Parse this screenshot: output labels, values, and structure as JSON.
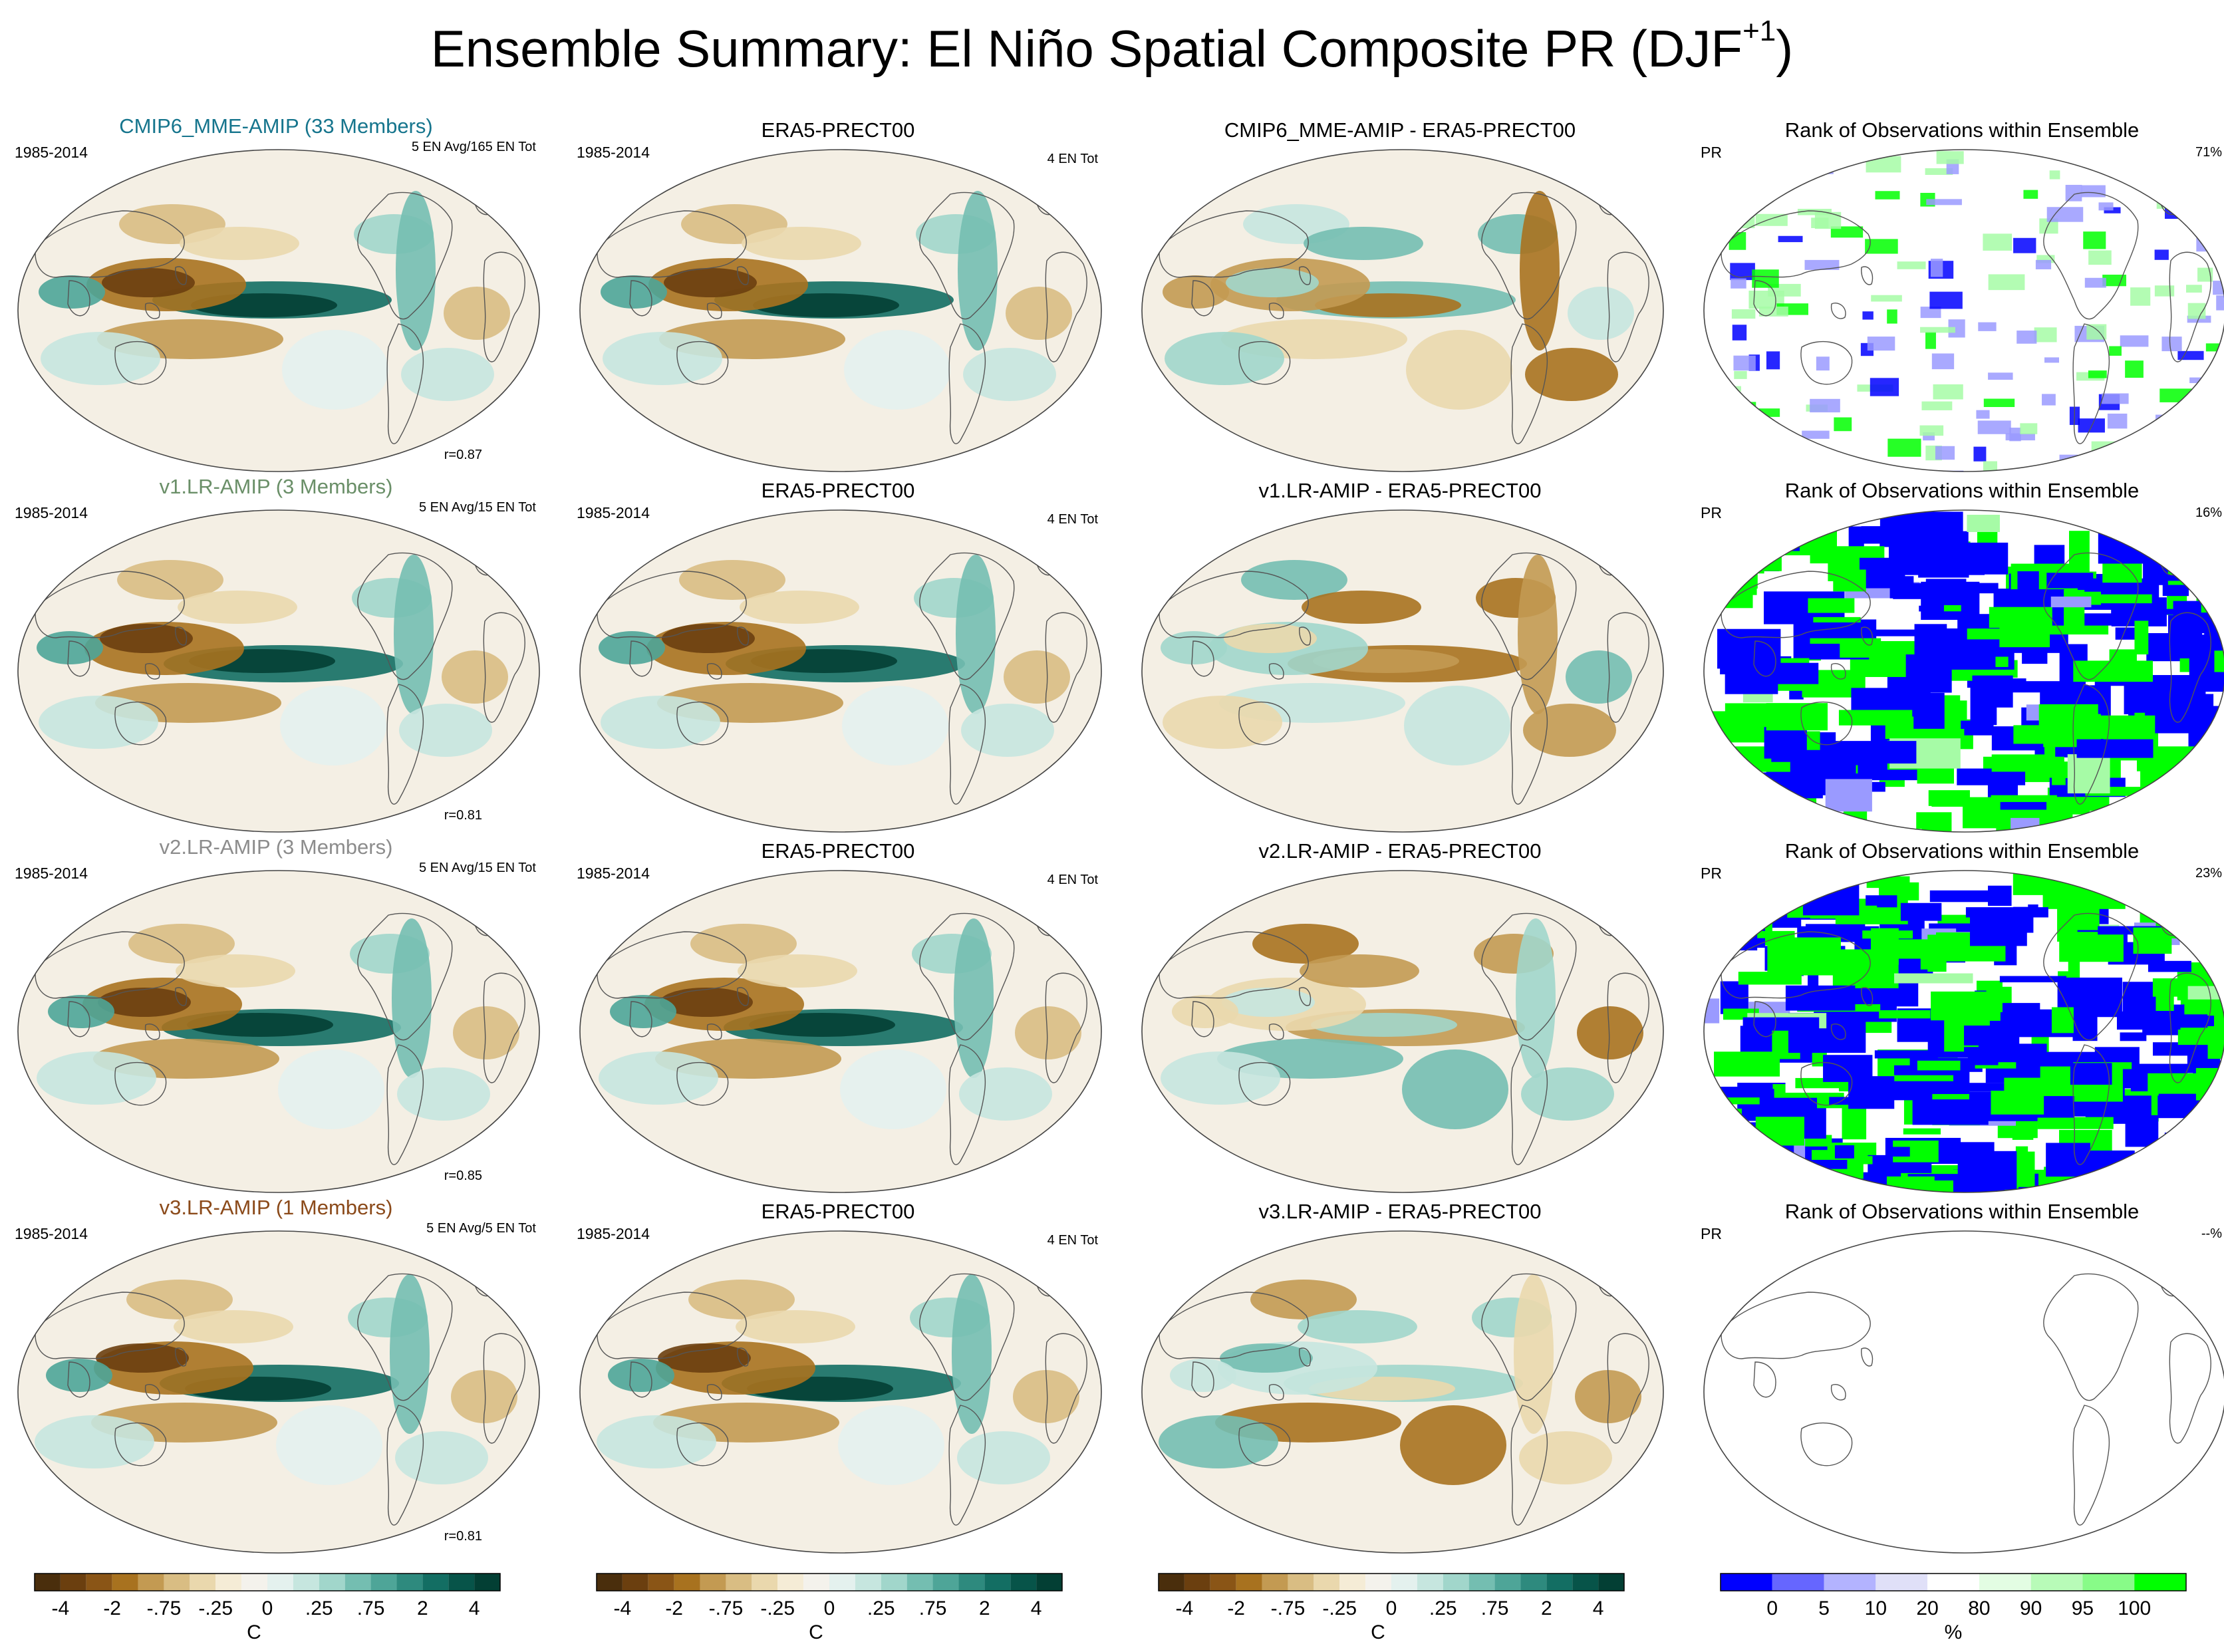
{
  "title": "Ensemble Summary: El Niño Spatial Composite PR (DJF",
  "title_sup": "+1",
  "title_close": ")",
  "rows": [
    {
      "model": {
        "title": "CMIP6_MME-AMIP (33 Members)",
        "title_color": "#16758d",
        "period": "1985-2014",
        "note": "5 EN Avg/165 EN Tot",
        "corr": "r=0.87"
      },
      "obs": {
        "title": "ERA5-PRECT00",
        "period": "1985-2014",
        "note": "4 EN Tot"
      },
      "diff": {
        "title": "CMIP6_MME-AMIP - ERA5-PRECT00"
      },
      "rank": {
        "title": "Rank of Observations within Ensemble",
        "var": "PR",
        "pct": "71%"
      }
    },
    {
      "model": {
        "title": "v1.LR-AMIP (3 Members)",
        "title_color": "#6a8f68",
        "period": "1985-2014",
        "note": "5 EN Avg/15 EN Tot",
        "corr": "r=0.81"
      },
      "obs": {
        "title": "ERA5-PRECT00",
        "period": "1985-2014",
        "note": "4 EN Tot"
      },
      "diff": {
        "title": "v1.LR-AMIP - ERA5-PRECT00"
      },
      "rank": {
        "title": "Rank of Observations within Ensemble",
        "var": "PR",
        "pct": "16%"
      }
    },
    {
      "model": {
        "title": "v2.LR-AMIP (3 Members)",
        "title_color": "#8c8c8c",
        "period": "1985-2014",
        "note": "5 EN Avg/15 EN Tot",
        "corr": "r=0.85"
      },
      "obs": {
        "title": "ERA5-PRECT00",
        "period": "1985-2014",
        "note": "4 EN Tot"
      },
      "diff": {
        "title": "v2.LR-AMIP - ERA5-PRECT00"
      },
      "rank": {
        "title": "Rank of Observations within Ensemble",
        "var": "PR",
        "pct": "23%"
      }
    },
    {
      "model": {
        "title": "v3.LR-AMIP (1 Members)",
        "title_color": "#8b4a1a",
        "period": "1985-2014",
        "note": "5 EN Avg/5 EN Tot",
        "corr": "r=0.81"
      },
      "obs": {
        "title": "ERA5-PRECT00",
        "period": "1985-2014",
        "note": "4 EN Tot"
      },
      "diff": {
        "title": "v3.LR-AMIP - ERA5-PRECT00"
      },
      "rank": {
        "title": "Rank of Observations within Ensemble",
        "var": "PR",
        "pct": "--%"
      }
    }
  ],
  "colorbars": {
    "brbg": {
      "colors": [
        "#4a2e0c",
        "#6b3f0f",
        "#8a5516",
        "#a8721f",
        "#c39a52",
        "#d9bd83",
        "#ead8ad",
        "#f5ecd6",
        "#f4f2ec",
        "#e4f1ee",
        "#c6e6df",
        "#a1d6cb",
        "#74beb1",
        "#4ea598",
        "#2e8a7e",
        "#136e63",
        "#075449",
        "#033f34"
      ],
      "labels": [
        "-4",
        "-2",
        "-.75",
        "-.25",
        "0",
        ".25",
        ".75",
        "2",
        "4"
      ],
      "unit": "C"
    },
    "rank": {
      "colors": [
        "#0000ff",
        "#6666ff",
        "#b3b3ff",
        "#e0e0f8",
        "#ffffff",
        "#e3fde3",
        "#b8fbb8",
        "#88fb88",
        "#00ff00"
      ],
      "labels": [
        "0",
        "5",
        "10",
        "20",
        "80",
        "90",
        "95",
        "100"
      ],
      "unit": "%"
    }
  }
}
